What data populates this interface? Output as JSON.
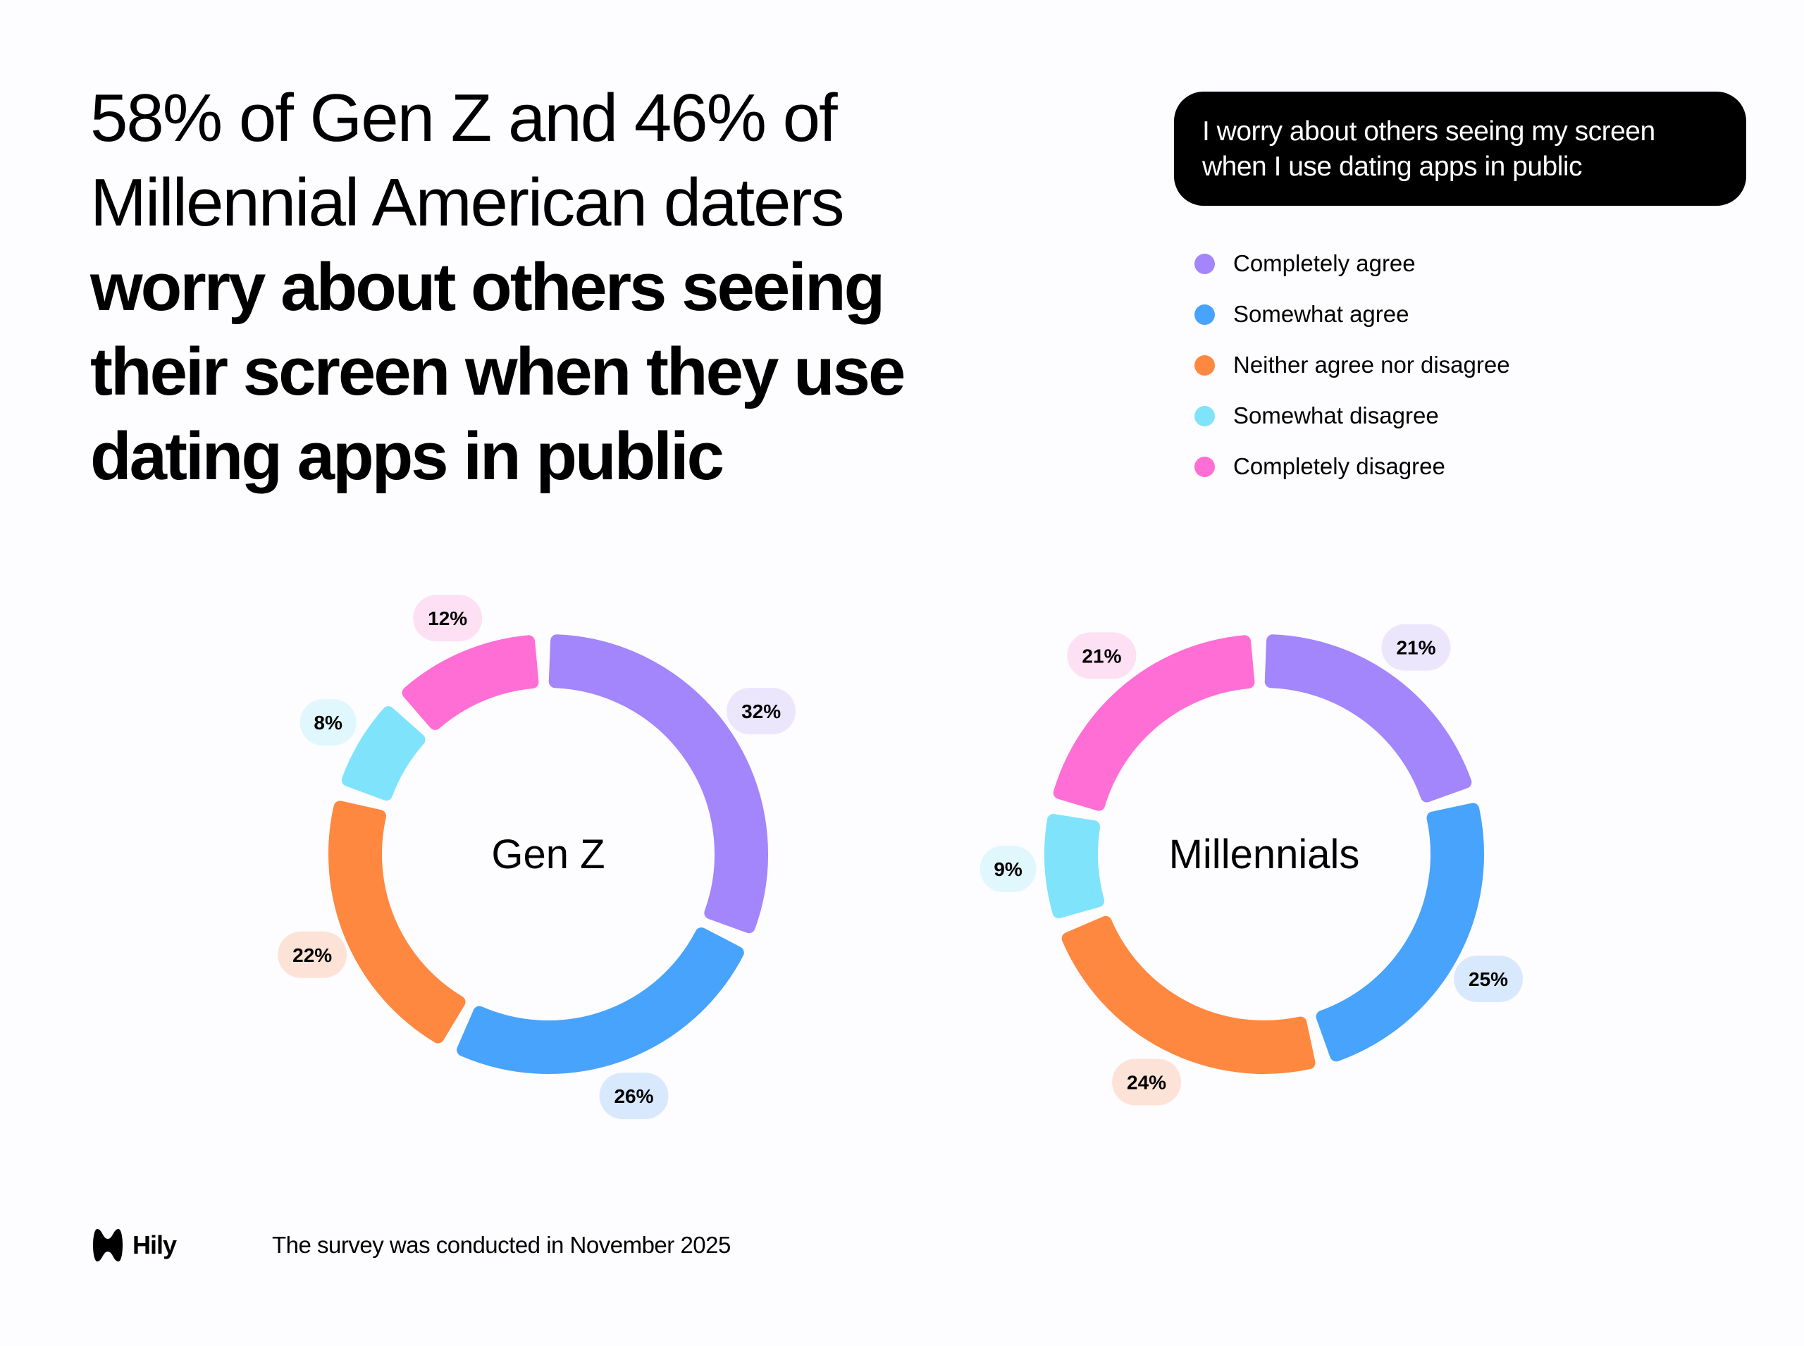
{
  "headline": {
    "regular_lines": [
      "58% of Gen Z and 46% of",
      "Millennial American daters"
    ],
    "bold_lines": [
      "worry about others seeing",
      "their screen when they use",
      "dating apps in public"
    ]
  },
  "question": "I worry about others seeing my screen when I use dating apps in public",
  "footer": {
    "brand": "Hily",
    "note": "The survey was conducted in November 2025"
  },
  "chart_data": {
    "type": "pie",
    "legend_position": "top-right",
    "categories": [
      "Completely agree",
      "Somewhat agree",
      "Neither agree nor disagree",
      "Somewhat disagree",
      "Completely disagree"
    ],
    "colors": [
      "#a385fc",
      "#47a3fc",
      "#ff8840",
      "#7fe3fc",
      "#ff6ed5"
    ],
    "label_bg_colors": [
      "#ece6fd",
      "#d9e9fd",
      "#fde3d7",
      "#e0f7fd",
      "#fde0f3"
    ],
    "series": [
      {
        "name": "Gen Z",
        "values": [
          32,
          26,
          22,
          8,
          12
        ],
        "labels": [
          "32%",
          "26%",
          "22%",
          "8%",
          "12%"
        ]
      },
      {
        "name": "Millennials",
        "values": [
          21,
          25,
          24,
          9,
          21
        ],
        "labels": [
          "21%",
          "25%",
          "24%",
          "9%",
          "21%"
        ]
      }
    ]
  }
}
